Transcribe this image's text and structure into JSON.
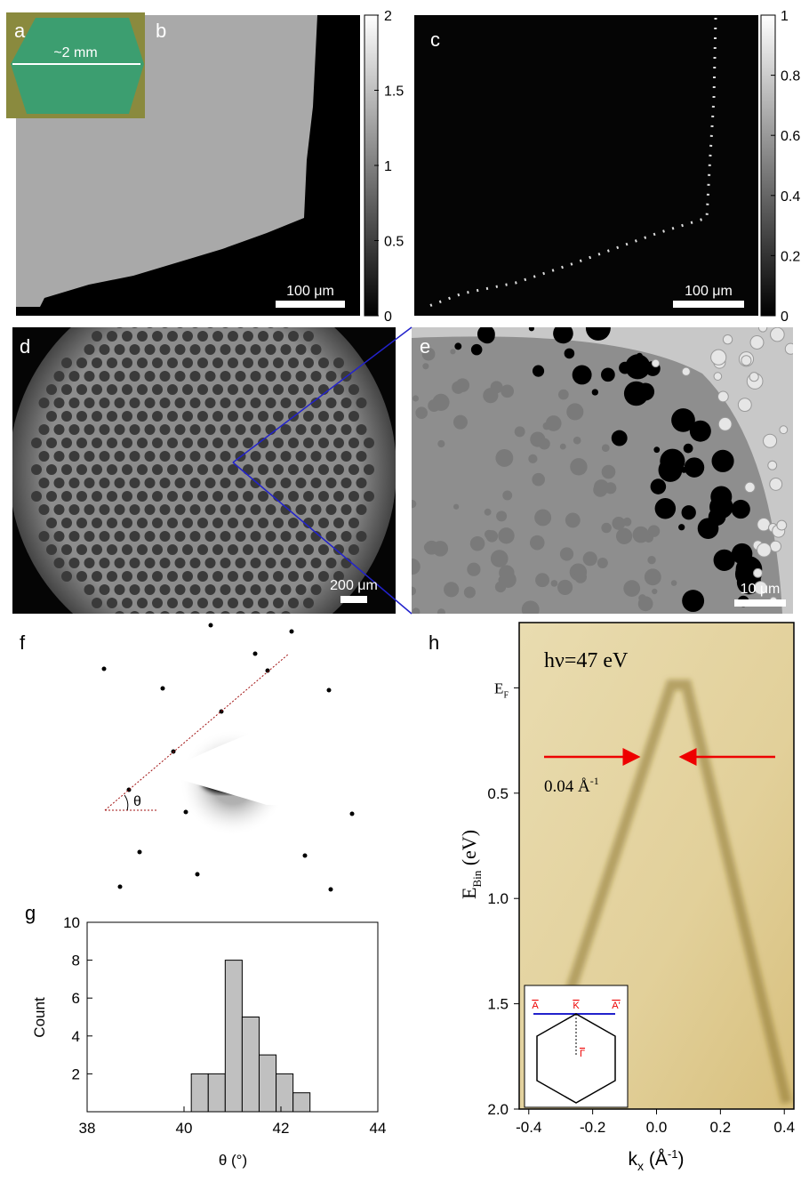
{
  "panels": [
    {
      "label": "a",
      "scale_bar": "~2 mm"
    },
    {
      "label": "b",
      "scale_bar": "100 μm",
      "colorbar": {
        "lim": [
          0,
          2
        ],
        "ticks": [
          0,
          0.5,
          1,
          1.5,
          2
        ]
      }
    },
    {
      "label": "c",
      "scale_bar": "100 μm",
      "colorbar": {
        "lim": [
          0,
          1
        ],
        "ticks": [
          0,
          0.2,
          0.4,
          0.6,
          0.8,
          1
        ]
      }
    },
    {
      "label": "d",
      "scale_bar": "200 μm"
    },
    {
      "label": "e",
      "scale_bar": "10 μm"
    },
    {
      "label": "f",
      "annotation": "θ"
    }
  ],
  "chart_data": [
    {
      "type": "histogram",
      "label": "g",
      "bins": [
        40.15,
        40.5,
        40.85,
        41.2,
        41.55,
        41.9,
        42.25,
        42.6
      ],
      "values": [
        2,
        2,
        8,
        5,
        3,
        2,
        1
      ],
      "color": "#c0c0c0",
      "xlim": [
        38,
        44
      ],
      "ylim": [
        0,
        10
      ],
      "xticks": [
        38,
        40,
        42,
        44
      ],
      "yticks": [
        2,
        4,
        6,
        8,
        10
      ],
      "x_label": "θ (°)",
      "y_label": "Count"
    },
    {
      "type": "image",
      "label": "h",
      "annotation": "hν=47 eV",
      "arrow_label": {
        "text": "0.04 Å",
        "superscript": "-1"
      },
      "xlim": [
        -0.43,
        0.43
      ],
      "ylim": [
        2.0,
        -0.31
      ],
      "xticks": [
        -0.4,
        -0.2,
        {
          "value": 0,
          "label": "0.0"
        },
        0.2,
        0.4
      ],
      "yticks": [
        {
          "value": 0,
          "label": "E",
          "subscript": "F"
        },
        0.5,
        {
          "value": 1,
          "label": "1.0"
        },
        1.5,
        {
          "value": 2,
          "label": "2.0"
        }
      ],
      "x_label": {
        "text": "k",
        "subscript": "x",
        "unit": " (Å",
        "superscript": "-1",
        "close": ")"
      },
      "y_label": {
        "text": "E",
        "subscript": "Bin",
        "unit": " (eV)"
      },
      "inset_labels": [
        "A",
        "K",
        "A'",
        "Γ"
      ]
    }
  ]
}
